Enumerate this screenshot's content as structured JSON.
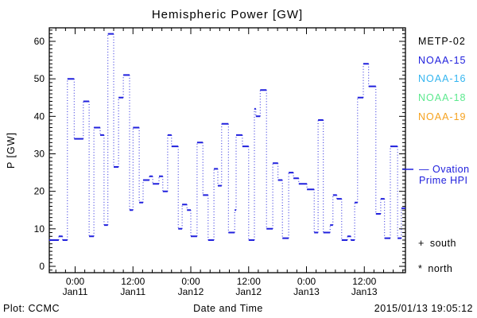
{
  "title": "Hemispheric Power [GW]",
  "axes": {
    "ylabel": "P [GW]",
    "xlabel": "Date and Time"
  },
  "footer": {
    "credit": "Plot: CCMC",
    "timestamp": "2015/01/13 19:05:12"
  },
  "legend": {
    "satellites": [
      {
        "label": "METP-02",
        "color": "#000000"
      },
      {
        "label": "NOAA-15",
        "color": "#2020dd"
      },
      {
        "label": "NOAA-16",
        "color": "#33b5f0"
      },
      {
        "label": "NOAA-18",
        "color": "#5ce98e"
      },
      {
        "label": "NOAA-19",
        "color": "#f6a21f"
      }
    ],
    "line_entry": {
      "label_line1": "— Ovation",
      "label_line2": "Prime HPI",
      "color": "#2020dd"
    },
    "markers": [
      {
        "symbol": "+",
        "label": "south"
      },
      {
        "symbol": "*",
        "label": "north"
      }
    ]
  },
  "chart_data": {
    "type": "line",
    "subtype": "step-with-dotted-risers",
    "title": "Hemispheric Power [GW]",
    "xlabel": "Date and Time",
    "ylabel": "P [GW]",
    "line_color": "#2020dd",
    "axis_color": "#000000",
    "grid": false,
    "x_hours_range": [
      -5.4,
      68.5
    ],
    "y_range": [
      -1.7,
      63.6
    ],
    "y_major_ticks": [
      0,
      10,
      20,
      30,
      40,
      50,
      60
    ],
    "y_minor_step": 1,
    "x_minor_step_hours": 2,
    "x_major_ticks": [
      {
        "h": 0,
        "time": "0:00",
        "date": "Jan11"
      },
      {
        "h": 12,
        "time": "12:00",
        "date": "Jan11"
      },
      {
        "h": 24,
        "time": "0:00",
        "date": "Jan12"
      },
      {
        "h": 36,
        "time": "12:00",
        "date": "Jan12"
      },
      {
        "h": 48,
        "time": "0:00",
        "date": "Jan13"
      },
      {
        "h": 60,
        "time": "12:00",
        "date": "Jan13"
      }
    ],
    "steps_hours_gw": [
      [
        -5.4,
        7
      ],
      [
        -3.4,
        8
      ],
      [
        -2.6,
        7
      ],
      [
        -1.6,
        50
      ],
      [
        -0.2,
        34
      ],
      [
        1.7,
        44
      ],
      [
        2.9,
        8
      ],
      [
        3.9,
        37
      ],
      [
        5.2,
        35
      ],
      [
        6.0,
        11
      ],
      [
        6.8,
        62
      ],
      [
        8.0,
        26.5
      ],
      [
        9.0,
        45
      ],
      [
        10.0,
        51
      ],
      [
        11.3,
        15
      ],
      [
        12.0,
        37
      ],
      [
        13.3,
        17
      ],
      [
        14.1,
        23
      ],
      [
        15.4,
        24
      ],
      [
        16.1,
        22
      ],
      [
        17.4,
        24
      ],
      [
        18.2,
        20
      ],
      [
        19.2,
        35
      ],
      [
        20.0,
        32
      ],
      [
        21.4,
        10
      ],
      [
        22.2,
        16.5
      ],
      [
        23.2,
        15
      ],
      [
        24.0,
        8
      ],
      [
        25.3,
        33
      ],
      [
        26.5,
        19
      ],
      [
        27.6,
        7
      ],
      [
        28.8,
        26
      ],
      [
        29.6,
        21.5
      ],
      [
        30.4,
        38
      ],
      [
        31.8,
        9
      ],
      [
        33.1,
        15
      ],
      [
        33.4,
        35
      ],
      [
        34.7,
        32
      ],
      [
        36.0,
        7
      ],
      [
        37.2,
        42
      ],
      [
        37.5,
        40
      ],
      [
        38.4,
        47
      ],
      [
        39.7,
        10
      ],
      [
        41.0,
        27.5
      ],
      [
        42.1,
        23
      ],
      [
        43.0,
        7.5
      ],
      [
        44.3,
        25
      ],
      [
        45.3,
        23.5
      ],
      [
        46.4,
        22
      ],
      [
        48.1,
        20.5
      ],
      [
        49.6,
        9
      ],
      [
        50.4,
        39
      ],
      [
        51.5,
        9
      ],
      [
        52.9,
        11
      ],
      [
        53.5,
        19
      ],
      [
        54.3,
        18
      ],
      [
        55.3,
        7
      ],
      [
        56.5,
        8
      ],
      [
        57.2,
        7
      ],
      [
        58.0,
        17
      ],
      [
        58.6,
        45
      ],
      [
        59.8,
        54
      ],
      [
        60.9,
        48
      ],
      [
        62.4,
        14
      ],
      [
        63.4,
        18
      ],
      [
        64.2,
        7.5
      ],
      [
        65.4,
        32
      ],
      [
        66.9,
        7.5
      ],
      [
        67.7,
        15.5
      ]
    ]
  }
}
